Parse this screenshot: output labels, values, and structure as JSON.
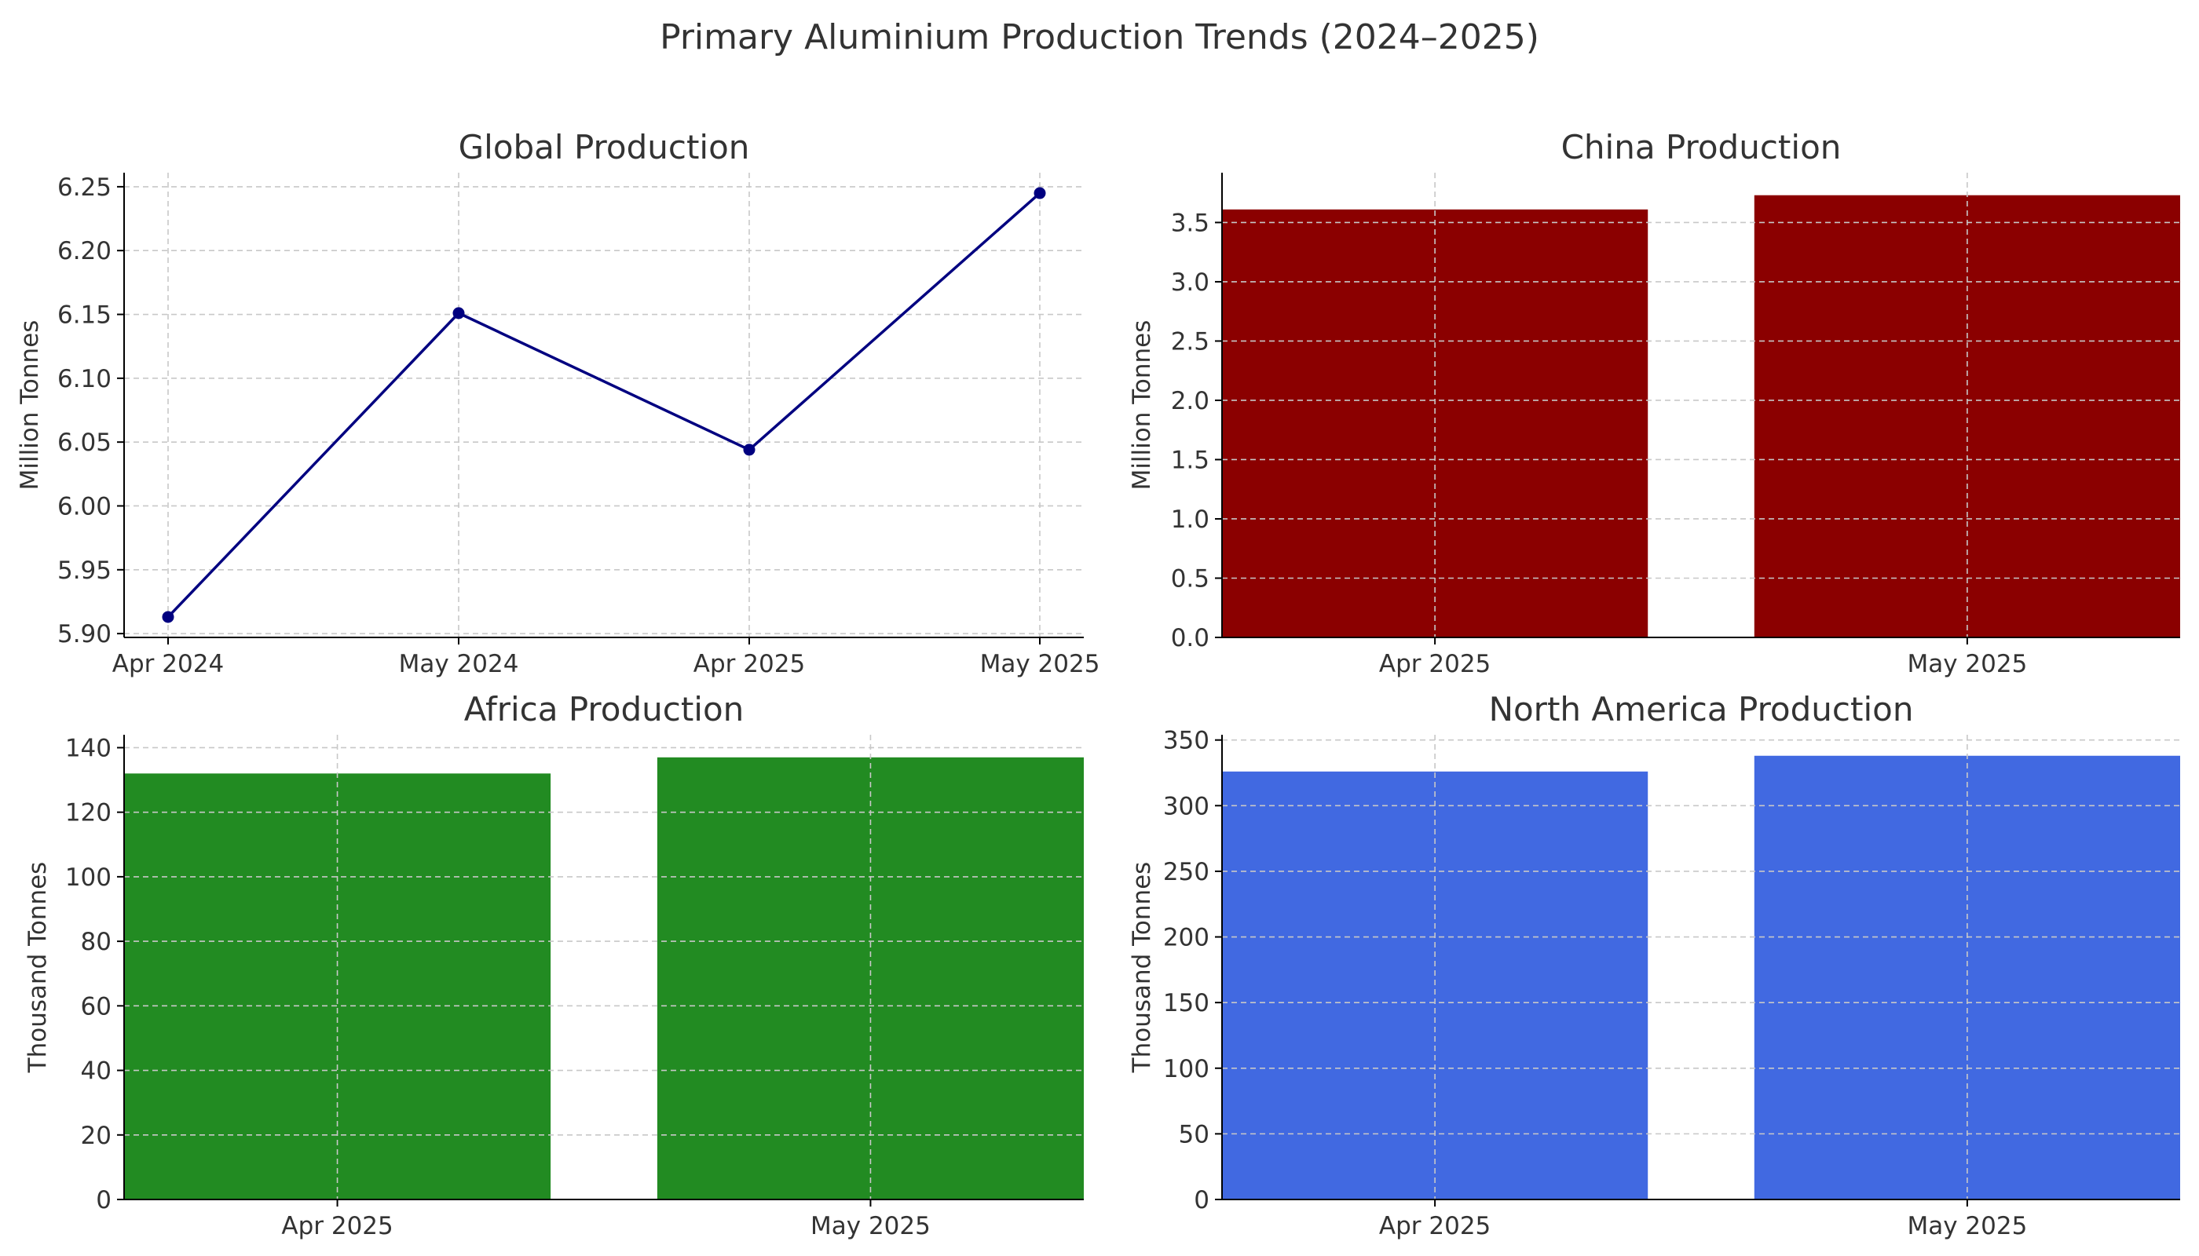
{
  "figure": {
    "title": "Primary Aluminium Production Trends (2024–2025)"
  },
  "chart_data": [
    {
      "type": "line",
      "title": "Global Production",
      "xlabel": "",
      "ylabel": "Million Tonnes",
      "categories": [
        "Apr 2024",
        "May 2024",
        "Apr 2025",
        "May 2025"
      ],
      "values": [
        5.913,
        6.151,
        6.044,
        6.245
      ],
      "ylim": [
        5.897,
        6.261
      ],
      "yticks": [
        5.9,
        5.95,
        6.0,
        6.05,
        6.1,
        6.15,
        6.2,
        6.25
      ],
      "ytick_labels": [
        "5.90",
        "5.95",
        "6.00",
        "6.05",
        "6.10",
        "6.15",
        "6.20",
        "6.25"
      ],
      "grid": true,
      "color": "#000080"
    },
    {
      "type": "bar",
      "title": "China Production",
      "xlabel": "",
      "ylabel": "Million Tonnes",
      "categories": [
        "Apr 2025",
        "May 2025"
      ],
      "values": [
        3.61,
        3.73
      ],
      "ylim": [
        0,
        3.92
      ],
      "yticks": [
        0,
        0.5,
        1.0,
        1.5,
        2.0,
        2.5,
        3.0,
        3.5
      ],
      "ytick_labels": [
        "0.0",
        "0.5",
        "1.0",
        "1.5",
        "2.0",
        "2.5",
        "3.0",
        "3.5"
      ],
      "grid": true,
      "color": "#8b0000"
    },
    {
      "type": "bar",
      "title": "Africa Production",
      "xlabel": "",
      "ylabel": "Thousand Tonnes",
      "categories": [
        "Apr 2025",
        "May 2025"
      ],
      "values": [
        132,
        137
      ],
      "ylim": [
        0,
        144
      ],
      "yticks": [
        0,
        20,
        40,
        60,
        80,
        100,
        120,
        140
      ],
      "ytick_labels": [
        "0",
        "20",
        "40",
        "60",
        "80",
        "100",
        "120",
        "140"
      ],
      "grid": true,
      "color": "#228b22"
    },
    {
      "type": "bar",
      "title": "North America Production",
      "xlabel": "",
      "ylabel": "Thousand Tonnes",
      "categories": [
        "Apr 2025",
        "May 2025"
      ],
      "values": [
        326,
        338
      ],
      "ylim": [
        0,
        354
      ],
      "yticks": [
        0,
        50,
        100,
        150,
        200,
        250,
        300,
        350
      ],
      "ytick_labels": [
        "0",
        "50",
        "100",
        "150",
        "200",
        "250",
        "300",
        "350"
      ],
      "grid": true,
      "color": "#4169e1"
    }
  ]
}
